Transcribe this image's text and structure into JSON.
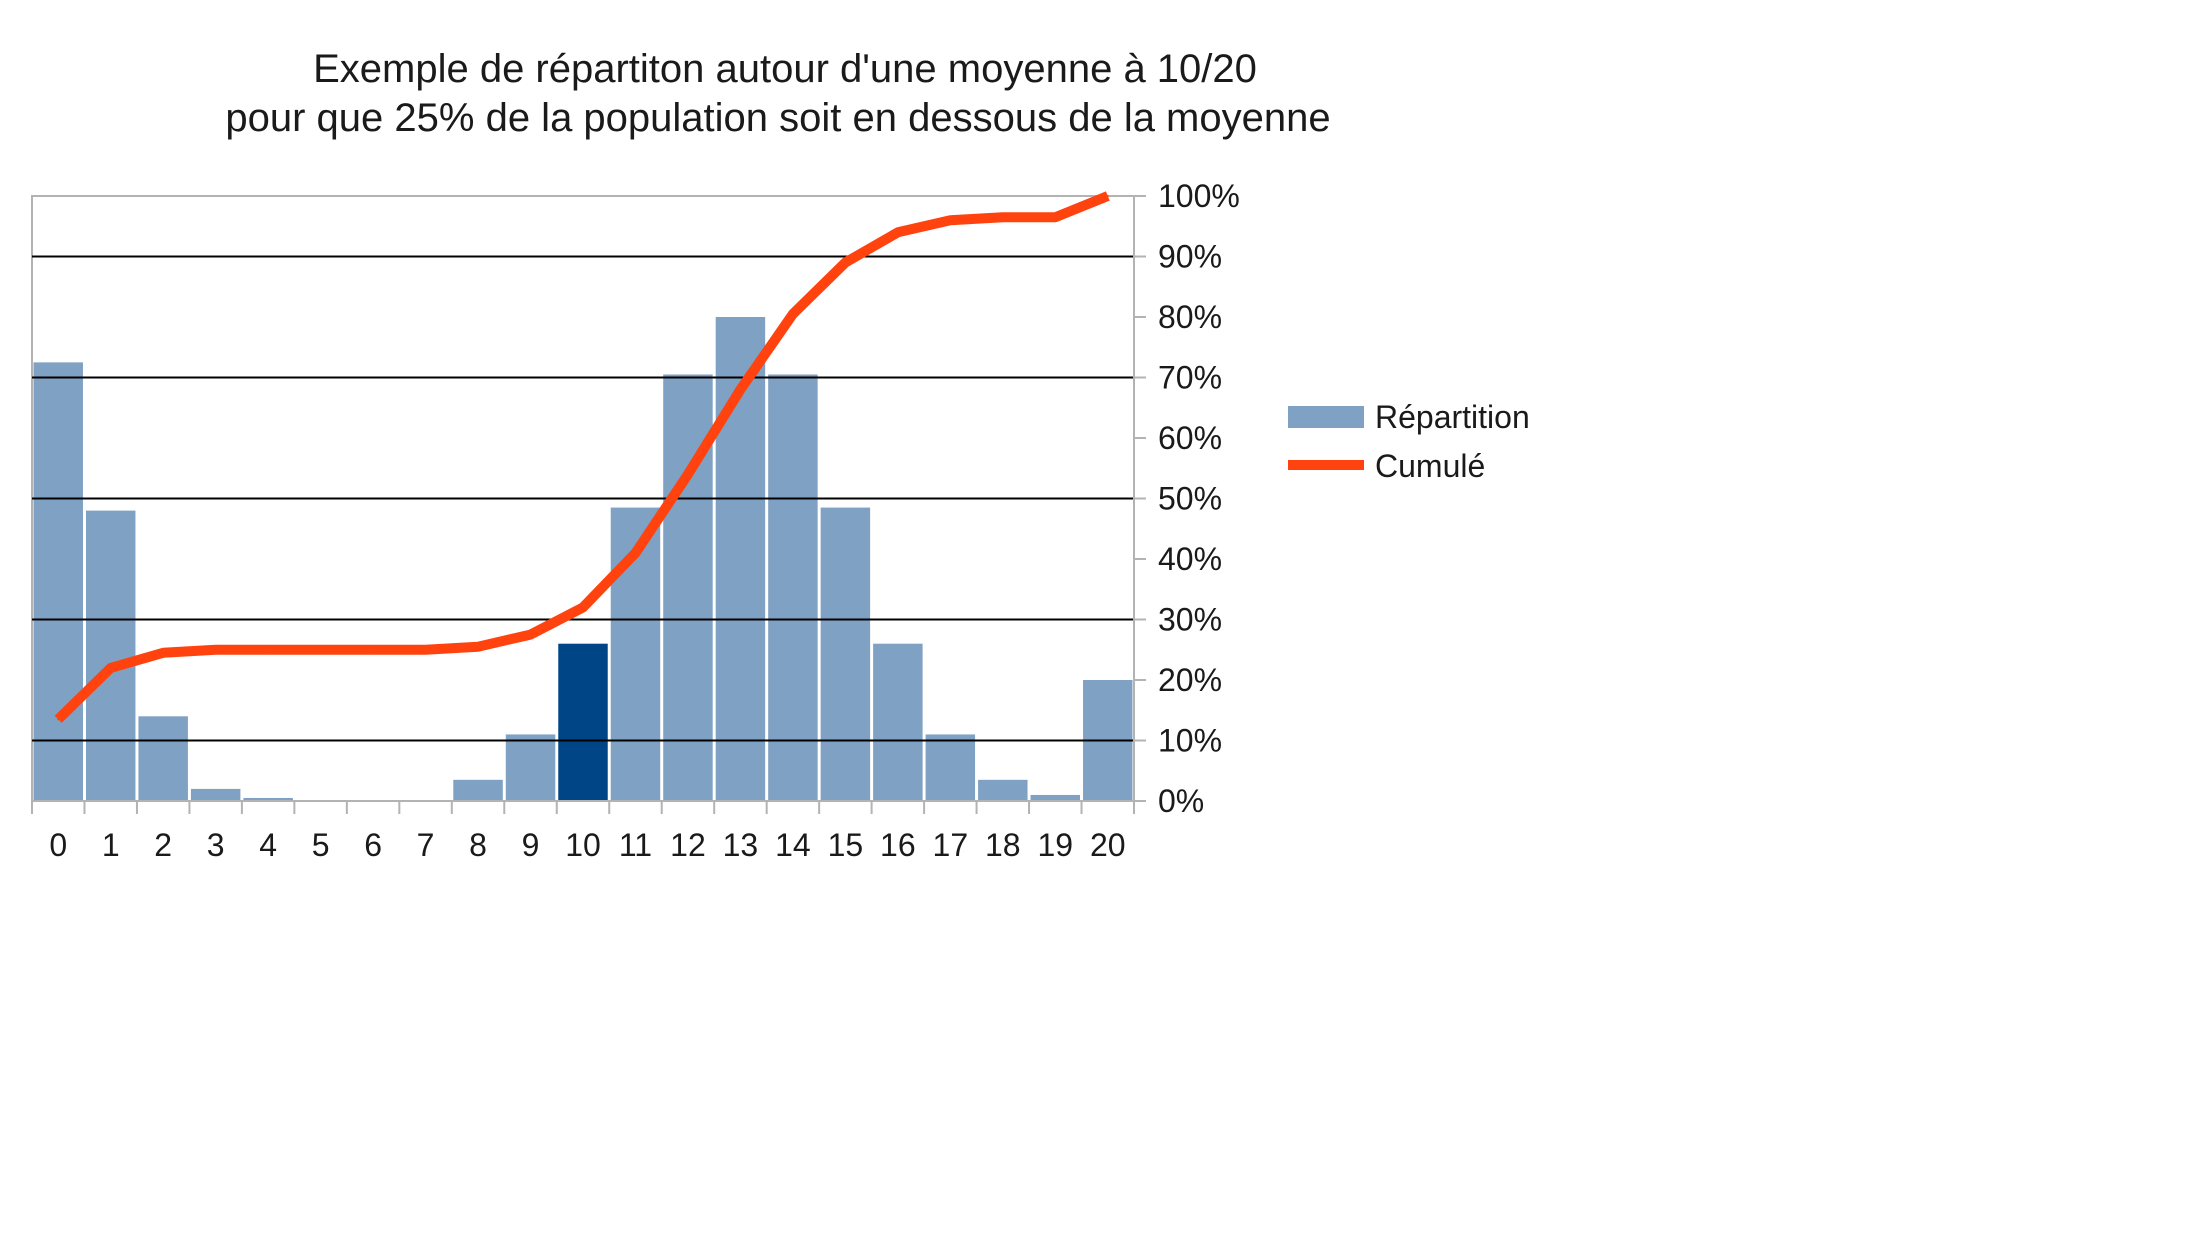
{
  "chart_data": {
    "type": "bar",
    "title": [
      "Exemple de répartiton autour d'une moyenne à 10/20",
      "pour que 25% de la population soit en dessous de la moyenne"
    ],
    "xlabel": "",
    "ylabel": "",
    "categories": [
      "0",
      "1",
      "2",
      "3",
      "4",
      "5",
      "6",
      "7",
      "8",
      "9",
      "10",
      "11",
      "12",
      "13",
      "14",
      "15",
      "16",
      "17",
      "18",
      "19",
      "20"
    ],
    "ylim": [
      0,
      100
    ],
    "yticks": [
      0,
      10,
      20,
      30,
      40,
      50,
      60,
      70,
      80,
      90,
      100
    ],
    "ytick_suffix": "%",
    "y_axis_side": "right",
    "grid": "horizontal, every 20% from 10%",
    "highlight_category": "10",
    "legend_position": "right",
    "series": [
      {
        "name": "Répartition",
        "type": "bar",
        "color": "#7fa1c3",
        "highlight_color": "#004586",
        "values": [
          72.5,
          48,
          14,
          2,
          0.5,
          0,
          0,
          0,
          3.5,
          11,
          26,
          48.5,
          70.5,
          80,
          70.5,
          48.5,
          26,
          11,
          3.5,
          1,
          20
        ]
      },
      {
        "name": "Cumulé",
        "type": "line",
        "color": "#ff420e",
        "values": [
          13.5,
          22,
          24.5,
          25,
          25,
          25,
          25,
          25,
          25.5,
          27.5,
          32,
          41,
          54,
          68,
          80.5,
          89,
          94,
          96,
          96.5,
          96.5,
          100
        ]
      }
    ]
  }
}
